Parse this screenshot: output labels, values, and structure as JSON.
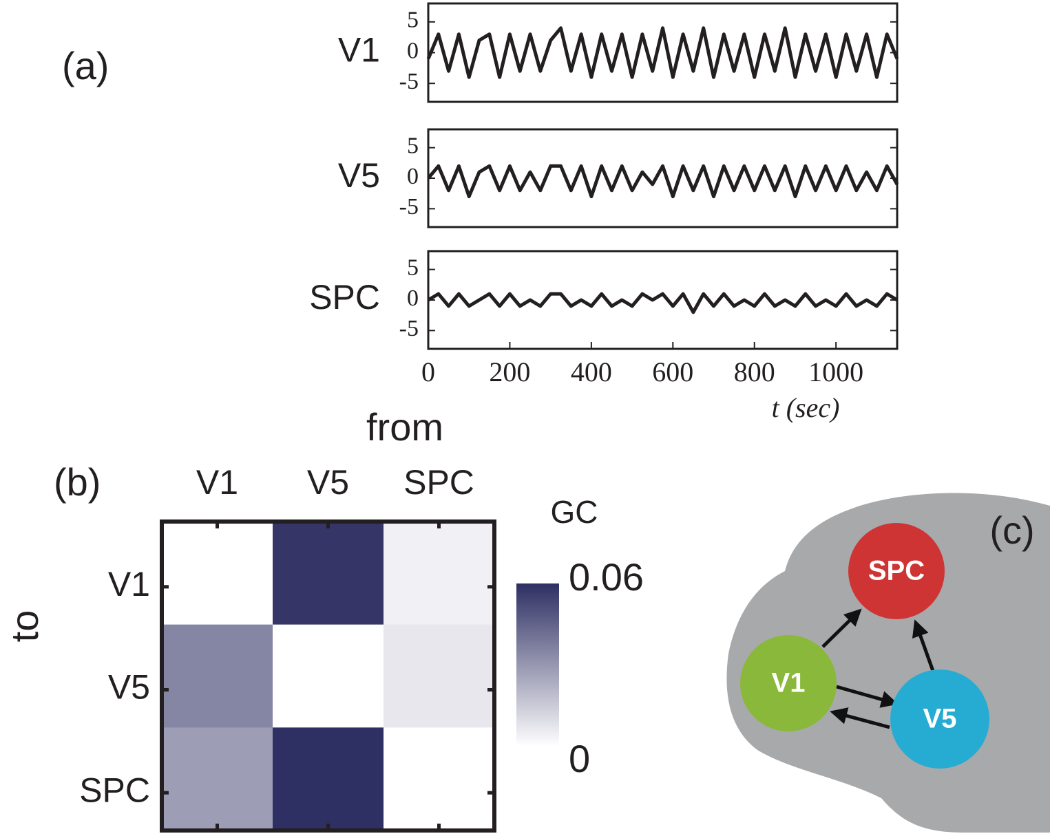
{
  "panel_labels": [
    "(a)",
    "(b)"
  ],
  "chart_data": [
    {
      "type": "line",
      "ylabel": "V1",
      "color": "#231f20",
      "x": [
        0,
        25,
        50,
        75,
        100,
        125,
        150,
        175,
        200,
        225,
        250,
        275,
        300,
        325,
        350,
        375,
        400,
        425,
        450,
        475,
        500,
        525,
        550,
        575,
        600,
        625,
        650,
        675,
        700,
        725,
        750,
        775,
        800,
        825,
        850,
        875,
        900,
        925,
        950,
        975,
        1000,
        1025,
        1050,
        1075,
        1100,
        1125,
        1150
      ],
      "values": [
        -1,
        3,
        -3,
        3,
        -4,
        2,
        3,
        -4,
        3,
        -3,
        3,
        -3,
        2,
        4,
        -3,
        3,
        -4,
        3,
        -3,
        3,
        -4,
        3,
        -3,
        4,
        -4,
        3,
        -3,
        4,
        -4,
        3,
        -3,
        3,
        -4,
        3,
        -3,
        4,
        -4,
        3,
        -3,
        3,
        -4,
        3,
        -3,
        3,
        -4,
        3,
        -1
      ],
      "xlim": [
        0,
        1150
      ],
      "ylim": [
        -8,
        8
      ],
      "yticks": [
        -5,
        0,
        5
      ]
    },
    {
      "type": "line",
      "ylabel": "V5",
      "color": "#231f20",
      "x": [
        0,
        25,
        50,
        75,
        100,
        125,
        150,
        175,
        200,
        225,
        250,
        275,
        300,
        325,
        350,
        375,
        400,
        425,
        450,
        475,
        500,
        525,
        550,
        575,
        600,
        625,
        650,
        675,
        700,
        725,
        750,
        775,
        800,
        825,
        850,
        875,
        900,
        925,
        950,
        975,
        1000,
        1025,
        1050,
        1075,
        1100,
        1125,
        1150
      ],
      "values": [
        0,
        2,
        -2,
        2,
        -3,
        1,
        2,
        -2,
        2,
        -2,
        1,
        -2,
        2,
        2,
        -2,
        2,
        -3,
        2,
        -2,
        2,
        -2,
        1,
        -1,
        2,
        -3,
        2,
        -2,
        2,
        -3,
        2,
        -2,
        2,
        -2,
        2,
        -2,
        2,
        -3,
        2,
        -2,
        2,
        -2,
        2,
        -2,
        1,
        -2,
        2,
        -1
      ],
      "xlim": [
        0,
        1150
      ],
      "ylim": [
        -8,
        8
      ],
      "yticks": [
        -5,
        0,
        5
      ]
    },
    {
      "type": "line",
      "ylabel": "SPC",
      "color": "#231f20",
      "x": [
        0,
        25,
        50,
        75,
        100,
        125,
        150,
        175,
        200,
        225,
        250,
        275,
        300,
        325,
        350,
        375,
        400,
        425,
        450,
        475,
        500,
        525,
        550,
        575,
        600,
        625,
        650,
        675,
        700,
        725,
        750,
        775,
        800,
        825,
        850,
        875,
        900,
        925,
        950,
        975,
        1000,
        1025,
        1050,
        1075,
        1100,
        1125,
        1150
      ],
      "values": [
        0,
        1,
        -1,
        1,
        -1,
        0,
        1,
        -1,
        1,
        -1,
        0,
        -1,
        1,
        1,
        -1,
        0,
        -1,
        1,
        -1,
        0,
        -1,
        1,
        0,
        1,
        -1,
        1,
        -2,
        1,
        -1,
        1,
        -1,
        0,
        -1,
        1,
        -1,
        0,
        -1,
        1,
        -1,
        0,
        -1,
        1,
        -1,
        0,
        -1,
        1,
        0
      ],
      "xlim": [
        0,
        1150
      ],
      "ylim": [
        -8,
        8
      ],
      "yticks": [
        -5,
        0,
        5
      ],
      "xticks": [
        0,
        200,
        400,
        600,
        800,
        1000
      ],
      "xlabel": "t (sec)"
    },
    {
      "type": "heatmap",
      "xlabel": "from",
      "ylabel": "to",
      "colorbar_label": "GC",
      "xcategories": [
        "V1",
        "V5",
        "SPC"
      ],
      "ycategories": [
        "V1",
        "V5",
        "SPC"
      ],
      "values": [
        [
          0,
          0.058,
          0.004
        ],
        [
          0.035,
          0,
          0.007
        ],
        [
          0.028,
          0.06,
          0
        ]
      ],
      "vlim": [
        0,
        0.06
      ],
      "cticks": [
        0,
        0.06
      ],
      "colors": [
        "#ffffff",
        "#2e2f62"
      ]
    }
  ],
  "diagram": {
    "label": "(c)",
    "nodes": [
      {
        "label": "SPC",
        "color": "#cf3434"
      },
      {
        "label": "V1",
        "color": "#8ab83a"
      },
      {
        "label": "V5",
        "color": "#26acd2"
      }
    ]
  }
}
